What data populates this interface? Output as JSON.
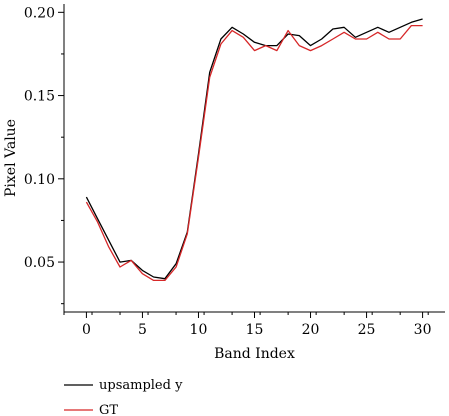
{
  "chart_data": {
    "type": "line",
    "title": "",
    "xlabel": "Band Index",
    "ylabel": "Pixel Value",
    "xlim": [
      -2,
      32
    ],
    "ylim": [
      0.02,
      0.205
    ],
    "xticks": [
      0,
      5,
      10,
      15,
      20,
      25,
      30
    ],
    "xtick_labels": [
      "0",
      "5",
      "10",
      "15",
      "20",
      "25",
      "30"
    ],
    "yticks": [
      0.05,
      0.1,
      0.15,
      0.2
    ],
    "ytick_labels": [
      "0.05",
      "0.10",
      "0.15",
      "0.20"
    ],
    "grid": false,
    "legend_position": "bottom-left",
    "x": [
      0,
      1,
      2,
      3,
      4,
      5,
      6,
      7,
      8,
      9,
      10,
      11,
      12,
      13,
      14,
      15,
      16,
      17,
      18,
      19,
      20,
      21,
      22,
      23,
      24,
      25,
      26,
      27,
      28,
      29,
      30
    ],
    "series": [
      {
        "name": "upsampled y",
        "color": "#000000",
        "values": [
          0.089,
          0.076,
          0.063,
          0.05,
          0.051,
          0.045,
          0.041,
          0.04,
          0.049,
          0.068,
          0.115,
          0.164,
          0.184,
          0.191,
          0.187,
          0.182,
          0.18,
          0.18,
          0.187,
          0.186,
          0.18,
          0.184,
          0.19,
          0.191,
          0.185,
          0.188,
          0.191,
          0.188,
          0.191,
          0.194,
          0.196
        ]
      },
      {
        "name": "GT",
        "color": "#d62728",
        "values": [
          0.086,
          0.074,
          0.059,
          0.047,
          0.051,
          0.043,
          0.039,
          0.039,
          0.047,
          0.067,
          0.113,
          0.161,
          0.181,
          0.189,
          0.185,
          0.177,
          0.18,
          0.177,
          0.189,
          0.18,
          0.177,
          0.18,
          0.184,
          0.188,
          0.184,
          0.184,
          0.188,
          0.184,
          0.184,
          0.192,
          0.192
        ]
      }
    ]
  }
}
